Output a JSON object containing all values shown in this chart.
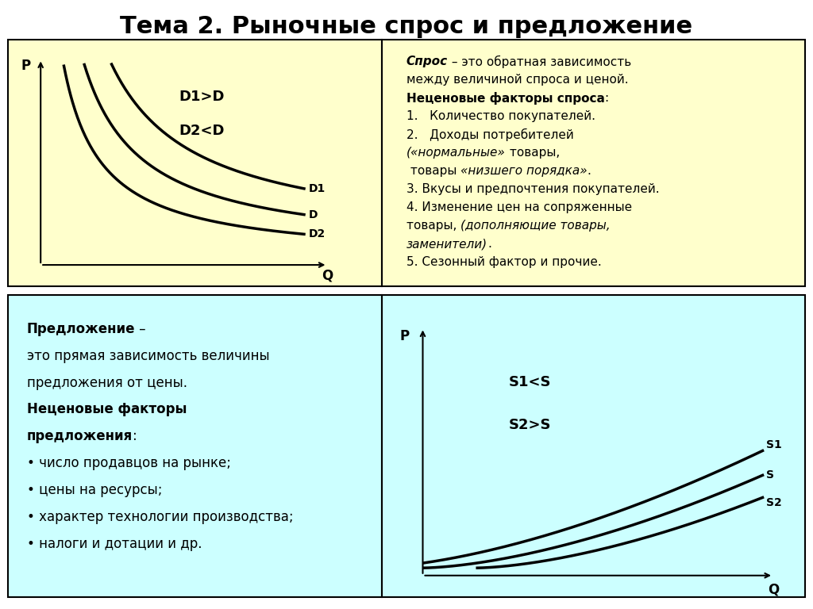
{
  "title": "Тема 2. Рыночные спрос и предложение",
  "title_fontsize": 22,
  "bg_color": "#ffffff",
  "top_left_bg": "#ffffcc",
  "top_right_bg": "#ffffcc",
  "bottom_left_bg": "#ccffff",
  "bottom_right_bg": "#ccffff",
  "demand_labels": {
    "d1": "D1",
    "d": "D",
    "d2": "D2",
    "p_axis": "P",
    "q_axis": "Q"
  },
  "demand_text_label1": "D1>D",
  "demand_text_label2": "D2<D",
  "supply_labels": {
    "s1": "S1",
    "s": "S",
    "s2": "S2",
    "p_axis": "P",
    "q_axis": "Q"
  },
  "supply_text_label1": "S1<S",
  "supply_text_label2": "S2>S"
}
